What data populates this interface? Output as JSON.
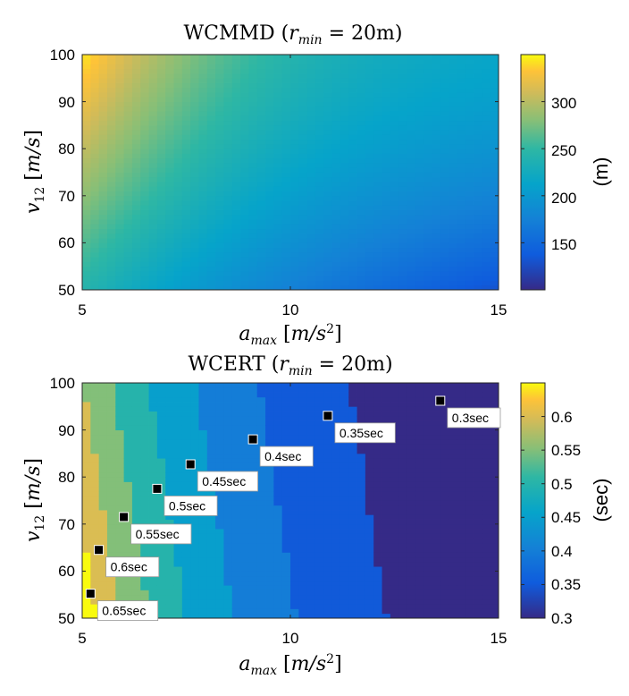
{
  "chart_data": [
    {
      "type": "heatmap",
      "title": "WCMMD (r_min = 20m)",
      "title_parts": {
        "main": "WCMMD (",
        "var": "r",
        "sub": "min",
        "rest": " = 20m)"
      },
      "xlabel": "a_max [m/s^2]",
      "ylabel": "v_12 [m/s]",
      "xlim": [
        5,
        15
      ],
      "ylim": [
        50,
        100
      ],
      "xticks": [
        "5",
        "10",
        "15"
      ],
      "yticks": [
        "50",
        "60",
        "70",
        "80",
        "90",
        "100"
      ],
      "colorbar": {
        "label": "(m)",
        "range": [
          100,
          350
        ],
        "ticks": [
          "150",
          "200",
          "250",
          "300"
        ]
      },
      "description_values": {
        "max_at": [
          5,
          100
        ],
        "max_value": 345,
        "min_at": [
          15,
          50
        ],
        "min_value": 103
      }
    },
    {
      "type": "heatmap",
      "title": "WCERT (r_min = 20m)",
      "title_parts": {
        "main": "WCERT (",
        "var": "r",
        "sub": "min",
        "rest": " = 20m)"
      },
      "xlabel": "a_max [m/s^2]",
      "ylabel": "v_12 [m/s]",
      "xlim": [
        5,
        15
      ],
      "ylim": [
        50,
        100
      ],
      "xticks": [
        "5",
        "10",
        "15"
      ],
      "yticks": [
        "50",
        "60",
        "70",
        "80",
        "90",
        "100"
      ],
      "colorbar": {
        "label": "(sec)",
        "range": [
          0.3,
          0.65
        ],
        "ticks": [
          "0.3",
          "0.35",
          "0.4",
          "0.45",
          "0.5",
          "0.55",
          "0.6"
        ]
      },
      "annotations": [
        {
          "label": "0.65sec",
          "x": 5.2,
          "y": 55.2
        },
        {
          "label": "0.6sec",
          "x": 5.4,
          "y": 64.5
        },
        {
          "label": "0.55sec",
          "x": 6.0,
          "y": 71.5
        },
        {
          "label": "0.5sec",
          "x": 6.8,
          "y": 77.5
        },
        {
          "label": "0.45sec",
          "x": 7.6,
          "y": 82.7
        },
        {
          "label": "0.4sec",
          "x": 9.1,
          "y": 88.0
        },
        {
          "label": "0.35sec",
          "x": 10.9,
          "y": 93.0
        },
        {
          "label": "0.3sec",
          "x": 13.6,
          "y": 96.2
        }
      ]
    }
  ]
}
